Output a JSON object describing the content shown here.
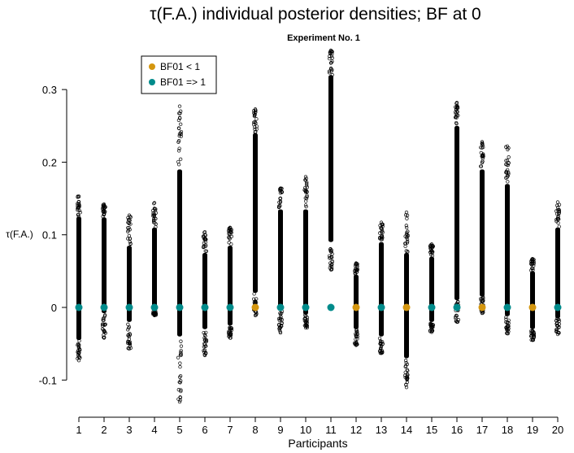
{
  "chart_data": {
    "type": "scatter",
    "title": "τ(F.A.) individual posterior densities; BF at 0",
    "subtitle": "Experiment No. 1",
    "xlabel": "Participants",
    "ylabel": "τ(F.A.)",
    "x_ticks": [
      "1",
      "2",
      "3",
      "4",
      "5",
      "6",
      "7",
      "8",
      "9",
      "10",
      "11",
      "12",
      "13",
      "14",
      "15",
      "16",
      "17",
      "18",
      "19",
      "20"
    ],
    "y_ticks": [
      -0.1,
      0,
      0.1,
      0.2,
      0.3
    ],
    "y_tick_labels": [
      "-0.1",
      "0",
      "0.1",
      "0.2",
      "0.3"
    ],
    "ylim": [
      -0.14,
      0.36
    ],
    "grid": false,
    "legend": {
      "position": "top-left",
      "entries": [
        {
          "label": "BF01 < 1",
          "color": "#D4960F"
        },
        {
          "label": "BF01 => 1",
          "color": "#008B8B"
        }
      ]
    },
    "participants": [
      {
        "x": 1,
        "range": [
          -0.073,
          0.153
        ],
        "dense": [
          -0.045,
          0.125
        ],
        "bf": "ge1"
      },
      {
        "x": 2,
        "range": [
          -0.042,
          0.142
        ],
        "dense": [
          -0.008,
          0.124
        ],
        "bf": "ge1"
      },
      {
        "x": 3,
        "range": [
          -0.057,
          0.127
        ],
        "dense": [
          -0.02,
          0.085
        ],
        "bf": "ge1"
      },
      {
        "x": 4,
        "range": [
          -0.011,
          0.144
        ],
        "dense": [
          -0.005,
          0.11
        ],
        "bf": "ge1"
      },
      {
        "x": 5,
        "range": [
          -0.13,
          0.277
        ],
        "dense": [
          -0.04,
          0.19
        ],
        "bf": "ge1"
      },
      {
        "x": 6,
        "range": [
          -0.066,
          0.104
        ],
        "dense": [
          -0.03,
          0.075
        ],
        "bf": "ge1"
      },
      {
        "x": 7,
        "range": [
          -0.042,
          0.11
        ],
        "dense": [
          -0.025,
          0.085
        ],
        "bf": "ge1"
      },
      {
        "x": 8,
        "range": [
          -0.011,
          0.273
        ],
        "dense": [
          0.02,
          0.24
        ],
        "bf": "lt1"
      },
      {
        "x": 9,
        "range": [
          -0.035,
          0.164
        ],
        "dense": [
          -0.005,
          0.135
        ],
        "bf": "ge1"
      },
      {
        "x": 10,
        "range": [
          -0.028,
          0.18
        ],
        "dense": [
          -0.01,
          0.135
        ],
        "bf": "ge1"
      },
      {
        "x": 11,
        "range": [
          0.052,
          0.354
        ],
        "dense": [
          0.09,
          0.32
        ],
        "bf": "ge1"
      },
      {
        "x": 12,
        "range": [
          -0.052,
          0.061
        ],
        "dense": [
          -0.03,
          0.045
        ],
        "bf": "lt1"
      },
      {
        "x": 13,
        "range": [
          -0.063,
          0.117
        ],
        "dense": [
          -0.04,
          0.09
        ],
        "bf": "ge1"
      },
      {
        "x": 14,
        "range": [
          -0.11,
          0.131
        ],
        "dense": [
          -0.07,
          0.075
        ],
        "bf": "lt1"
      },
      {
        "x": 15,
        "range": [
          -0.034,
          0.087
        ],
        "dense": [
          -0.02,
          0.07
        ],
        "bf": "ge1"
      },
      {
        "x": 16,
        "range": [
          -0.02,
          0.282
        ],
        "dense": [
          0.01,
          0.25
        ],
        "bf": "ge1"
      },
      {
        "x": 17,
        "range": [
          -0.008,
          0.228
        ],
        "dense": [
          0.015,
          0.19
        ],
        "bf": "lt1"
      },
      {
        "x": 18,
        "range": [
          -0.036,
          0.222
        ],
        "dense": [
          -0.012,
          0.17
        ],
        "bf": "ge1"
      },
      {
        "x": 19,
        "range": [
          -0.045,
          0.067
        ],
        "dense": [
          -0.03,
          0.05
        ],
        "bf": "lt1"
      },
      {
        "x": 20,
        "range": [
          -0.037,
          0.145
        ],
        "dense": [
          -0.015,
          0.11
        ],
        "bf": "ge1"
      }
    ],
    "bf_point_y": 0
  }
}
